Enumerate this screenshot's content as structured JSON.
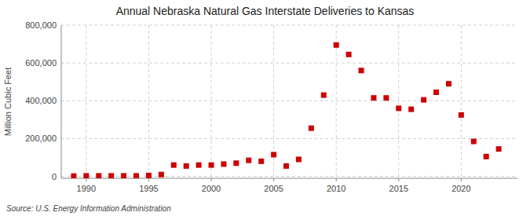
{
  "chart_data": {
    "type": "scatter",
    "title": "Annual Nebraska Natural Gas Interstate Deliveries to Kansas",
    "ylabel": "Million Cubic Feet",
    "source": "Source: U.S. Energy Information Administration",
    "color": "#cc0000",
    "marker": "square",
    "grid": true,
    "xlim": [
      1988,
      2024.5
    ],
    "ylim": [
      -10000,
      800000
    ],
    "xticks": [
      1990,
      1995,
      2000,
      2005,
      2010,
      2015,
      2020
    ],
    "yticks": [
      0,
      {
        "value": 200000,
        "label": "200,000"
      },
      {
        "value": 400000,
        "label": "400,000"
      },
      {
        "value": 600000,
        "label": "600,000"
      },
      {
        "value": 800000,
        "label": "800,000"
      }
    ],
    "x": [
      1989,
      1990,
      1991,
      1992,
      1993,
      1994,
      1995,
      1996,
      1997,
      1998,
      1999,
      2000,
      2001,
      2002,
      2003,
      2004,
      2005,
      2006,
      2007,
      2008,
      2009,
      2010,
      2011,
      2012,
      2013,
      2014,
      2015,
      2016,
      2017,
      2018,
      2019,
      2020,
      2021,
      2022,
      2023
    ],
    "values": [
      2000,
      3000,
      3000,
      3000,
      3000,
      3000,
      5000,
      10000,
      60000,
      55000,
      60000,
      60000,
      65000,
      70000,
      85000,
      80000,
      115000,
      55000,
      90000,
      255000,
      430000,
      695000,
      645000,
      560000,
      415000,
      415000,
      360000,
      355000,
      405000,
      445000,
      490000,
      325000,
      185000,
      105000,
      145000
    ]
  }
}
